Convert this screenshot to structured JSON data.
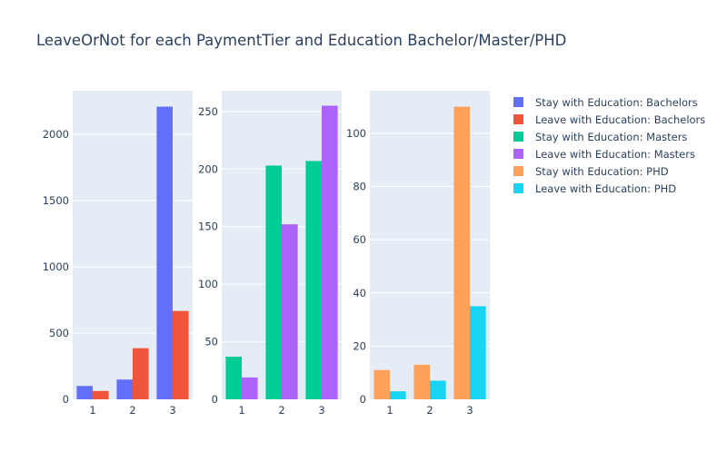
{
  "title": "LeaveOrNot for each PaymentTier and Education Bachelor/Master/PHD",
  "chart_data": [
    {
      "type": "bar",
      "categories": [
        "1",
        "2",
        "3"
      ],
      "series": [
        {
          "name": "Stay with Education: Bachelors",
          "color": "#636efa",
          "values": [
            101,
            149,
            2210
          ]
        },
        {
          "name": "Leave with Education: Bachelors",
          "color": "#ef553b",
          "values": [
            63,
            386,
            667
          ]
        }
      ],
      "ylim": [
        0,
        2330
      ],
      "yticks": [
        0,
        500,
        1000,
        1500,
        2000
      ],
      "grid": true
    },
    {
      "type": "bar",
      "categories": [
        "1",
        "2",
        "3"
      ],
      "series": [
        {
          "name": "Stay with Education: Masters",
          "color": "#00cc96",
          "values": [
            37,
            203,
            207
          ]
        },
        {
          "name": "Leave with Education: Masters",
          "color": "#ab63fa",
          "values": [
            19,
            152,
            255
          ]
        }
      ],
      "ylim": [
        0,
        268
      ],
      "yticks": [
        0,
        50,
        100,
        150,
        200,
        250
      ],
      "grid": true
    },
    {
      "type": "bar",
      "categories": [
        "1",
        "2",
        "3"
      ],
      "series": [
        {
          "name": "Stay with Education: PHD",
          "color": "#ffa15a",
          "values": [
            11,
            13,
            110
          ]
        },
        {
          "name": "Leave with Education: PHD",
          "color": "#19d3f3",
          "values": [
            3,
            7,
            35
          ]
        }
      ],
      "ylim": [
        0,
        116
      ],
      "yticks": [
        0,
        20,
        40,
        60,
        80,
        100
      ],
      "grid": true
    }
  ],
  "legend": {
    "position": "right",
    "items": [
      {
        "label": "Stay with Education: Bachelors",
        "color": "#636efa"
      },
      {
        "label": "Leave with Education: Bachelors",
        "color": "#ef553b"
      },
      {
        "label": "Stay with Education: Masters",
        "color": "#00cc96"
      },
      {
        "label": "Leave with Education: Masters",
        "color": "#ab63fa"
      },
      {
        "label": "Stay with Education: PHD",
        "color": "#ffa15a"
      },
      {
        "label": "Leave with Education: PHD",
        "color": "#19d3f3"
      }
    ]
  },
  "colors": {
    "plot_bg": "#e5ecf6",
    "grid": "#ffffff",
    "text": "#2a3f5f"
  }
}
